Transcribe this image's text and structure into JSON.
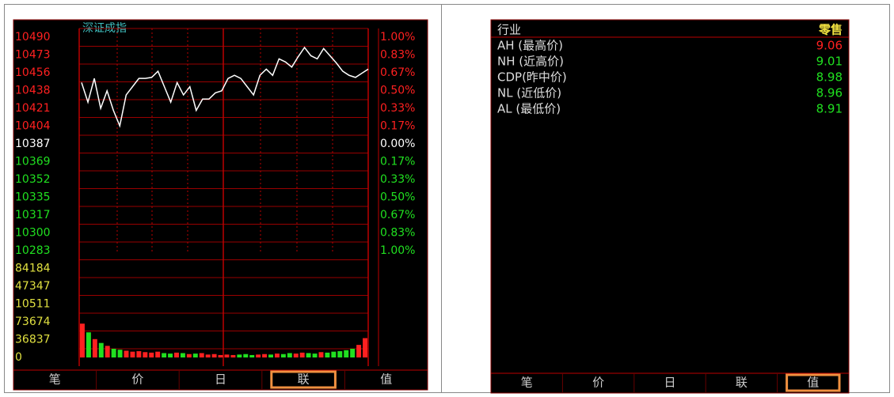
{
  "left_panel": {
    "title": "深证成指",
    "price_ticks": [
      10490,
      10473,
      10456,
      10438,
      10421,
      10404,
      10387,
      10369,
      10352,
      10335,
      10317,
      10300,
      10283
    ],
    "percent_labels": [
      "1.00%",
      "0.83%",
      "0.67%",
      "0.50%",
      "0.33%",
      "0.17%",
      "0.00%",
      "0.17%",
      "0.33%",
      "0.50%",
      "0.67%",
      "0.83%",
      "1.00%"
    ],
    "volume_ticks": [
      84184,
      47347,
      10511,
      73674,
      36837,
      0
    ],
    "prices": [
      10446,
      10427,
      10450,
      10421,
      10438,
      10419,
      10404,
      10434,
      10442,
      10450,
      10450,
      10451,
      10457,
      10442,
      10427,
      10446,
      10434,
      10442,
      10419,
      10430,
      10430,
      10436,
      10438,
      10450,
      10453,
      10450,
      10442,
      10434,
      10453,
      10459,
      10453,
      10469,
      10466,
      10461,
      10471,
      10480,
      10472,
      10469,
      10479,
      10472,
      10465,
      10457,
      10453,
      10451,
      10455,
      10459
    ],
    "volumes": [
      70000,
      52000,
      38000,
      30000,
      24000,
      18000,
      16000,
      14000,
      12000,
      13000,
      11000,
      10000,
      12000,
      9000,
      8000,
      10000,
      9000,
      7000,
      8000,
      9000,
      6000,
      7000,
      5000,
      6000,
      5000,
      6000,
      7000,
      5000,
      6000,
      7000,
      6000,
      8000,
      7000,
      9000,
      8000,
      10000,
      9000,
      8000,
      11000,
      10000,
      12000,
      13000,
      15000,
      18000,
      26000,
      40000
    ],
    "tabs": [
      "笔",
      "价",
      "日",
      "联",
      "值"
    ],
    "active_tab": 3
  },
  "right_panel": {
    "header": [
      "行业",
      "零售"
    ],
    "rows": [
      {
        "label": "AH (最高价)",
        "value": "9.06",
        "color": "#ff2020"
      },
      {
        "label": "NH (近高价)",
        "value": "9.01",
        "color": "#20e020"
      },
      {
        "label": "CDP(昨中价)",
        "value": "8.98",
        "color": "#20e020"
      },
      {
        "label": "NL (近低价)",
        "value": "8.96",
        "color": "#20e020"
      },
      {
        "label": "AL (最低价)",
        "value": "8.91",
        "color": "#20e020"
      }
    ],
    "tabs": [
      "笔",
      "价",
      "日",
      "联",
      "值"
    ],
    "active_tab": 4
  }
}
